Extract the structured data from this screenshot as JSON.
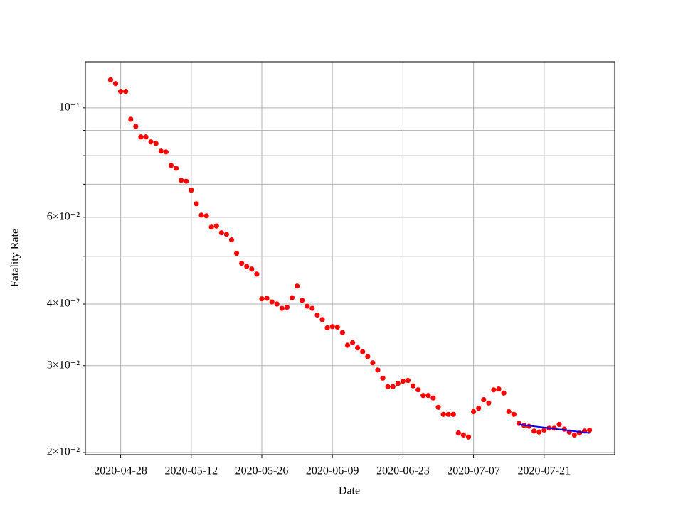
{
  "chart_data": {
    "type": "scatter",
    "x_label": "Date",
    "y_label": "Fatality Rate",
    "log_y": true,
    "grid": true,
    "x": [
      "2020-04-26",
      "2020-04-27",
      "2020-04-28",
      "2020-04-29",
      "2020-04-30",
      "2020-05-01",
      "2020-05-02",
      "2020-05-03",
      "2020-05-04",
      "2020-05-05",
      "2020-05-06",
      "2020-05-07",
      "2020-05-08",
      "2020-05-09",
      "2020-05-10",
      "2020-05-11",
      "2020-05-12",
      "2020-05-13",
      "2020-05-14",
      "2020-05-15",
      "2020-05-16",
      "2020-05-17",
      "2020-05-18",
      "2020-05-19",
      "2020-05-20",
      "2020-05-21",
      "2020-05-22",
      "2020-05-23",
      "2020-05-24",
      "2020-05-25",
      "2020-05-26",
      "2020-05-27",
      "2020-05-28",
      "2020-05-29",
      "2020-05-30",
      "2020-05-31",
      "2020-06-01",
      "2020-06-02",
      "2020-06-03",
      "2020-06-04",
      "2020-06-05",
      "2020-06-06",
      "2020-06-07",
      "2020-06-08",
      "2020-06-09",
      "2020-06-10",
      "2020-06-11",
      "2020-06-12",
      "2020-06-13",
      "2020-06-14",
      "2020-06-15",
      "2020-06-16",
      "2020-06-17",
      "2020-06-18",
      "2020-06-19",
      "2020-06-20",
      "2020-06-21",
      "2020-06-22",
      "2020-06-23",
      "2020-06-24",
      "2020-06-25",
      "2020-06-26",
      "2020-06-27",
      "2020-06-28",
      "2020-06-29",
      "2020-06-30",
      "2020-07-01",
      "2020-07-02",
      "2020-07-03",
      "2020-07-04",
      "2020-07-05",
      "2020-07-06",
      "2020-07-07",
      "2020-07-08",
      "2020-07-09",
      "2020-07-10",
      "2020-07-11",
      "2020-07-12",
      "2020-07-13",
      "2020-07-14",
      "2020-07-15",
      "2020-07-16",
      "2020-07-17",
      "2020-07-18",
      "2020-07-19",
      "2020-07-20",
      "2020-07-21",
      "2020-07-22",
      "2020-07-23",
      "2020-07-24",
      "2020-07-25",
      "2020-07-26",
      "2020-07-27",
      "2020-07-28",
      "2020-07-29",
      "2020-07-30"
    ],
    "series": [
      {
        "color": "#ff0000",
        "style": "markers",
        "values": [
          0.114,
          0.112,
          0.108,
          0.108,
          0.0948,
          0.0917,
          0.0873,
          0.0873,
          0.0853,
          0.0847,
          0.0817,
          0.0814,
          0.0764,
          0.0754,
          0.0713,
          0.071,
          0.0681,
          0.0639,
          0.0606,
          0.0604,
          0.0573,
          0.0576,
          0.0558,
          0.0554,
          0.054,
          0.0507,
          0.0484,
          0.0477,
          0.0471,
          0.046,
          0.041,
          0.0411,
          0.0404,
          0.04,
          0.0392,
          0.0394,
          0.0412,
          0.0435,
          0.0407,
          0.0396,
          0.0392,
          0.038,
          0.0372,
          0.0358,
          0.036,
          0.0359,
          0.035,
          0.033,
          0.0334,
          0.0326,
          0.032,
          0.0313,
          0.0304,
          0.0294,
          0.0283,
          0.0272,
          0.0272,
          0.0276,
          0.0279,
          0.028,
          0.0273,
          0.0268,
          0.0261,
          0.0261,
          0.0258,
          0.0247,
          0.0239,
          0.0239,
          0.0239,
          0.0219,
          0.0217,
          0.0215,
          0.0242,
          0.0246,
          0.0256,
          0.0252,
          0.0268,
          0.0269,
          0.0264,
          0.0242,
          0.0239,
          0.0229,
          0.0227,
          0.0226,
          0.0221,
          0.022,
          0.0222,
          0.0224,
          0.0224,
          0.0228,
          0.0223,
          0.022,
          0.0217,
          0.0219,
          0.0221,
          0.0222
        ]
      },
      {
        "color": "#0000ff",
        "style": "line",
        "x": [
          "2020-07-16",
          "2020-07-30"
        ],
        "values": [
          0.0228,
          0.0219
        ]
      }
    ],
    "xlim": [
      "2020-04-21",
      "2020-08-04"
    ],
    "xticks": [
      "2020-04-28",
      "2020-05-12",
      "2020-05-26",
      "2020-06-09",
      "2020-06-23",
      "2020-07-07",
      "2020-07-21"
    ],
    "ylim": [
      0.0198,
      0.124
    ],
    "yticks": [
      {
        "value": 0.02,
        "label": "2×10⁻²"
      },
      {
        "value": 0.03,
        "label": "3×10⁻²"
      },
      {
        "value": 0.04,
        "label": "4×10⁻²"
      },
      {
        "value": 0.06,
        "label": "6×10⁻²"
      },
      {
        "value": 0.1,
        "label": "10⁻¹"
      }
    ],
    "yminorticks": [
      0.05,
      0.07,
      0.08,
      0.09
    ]
  }
}
